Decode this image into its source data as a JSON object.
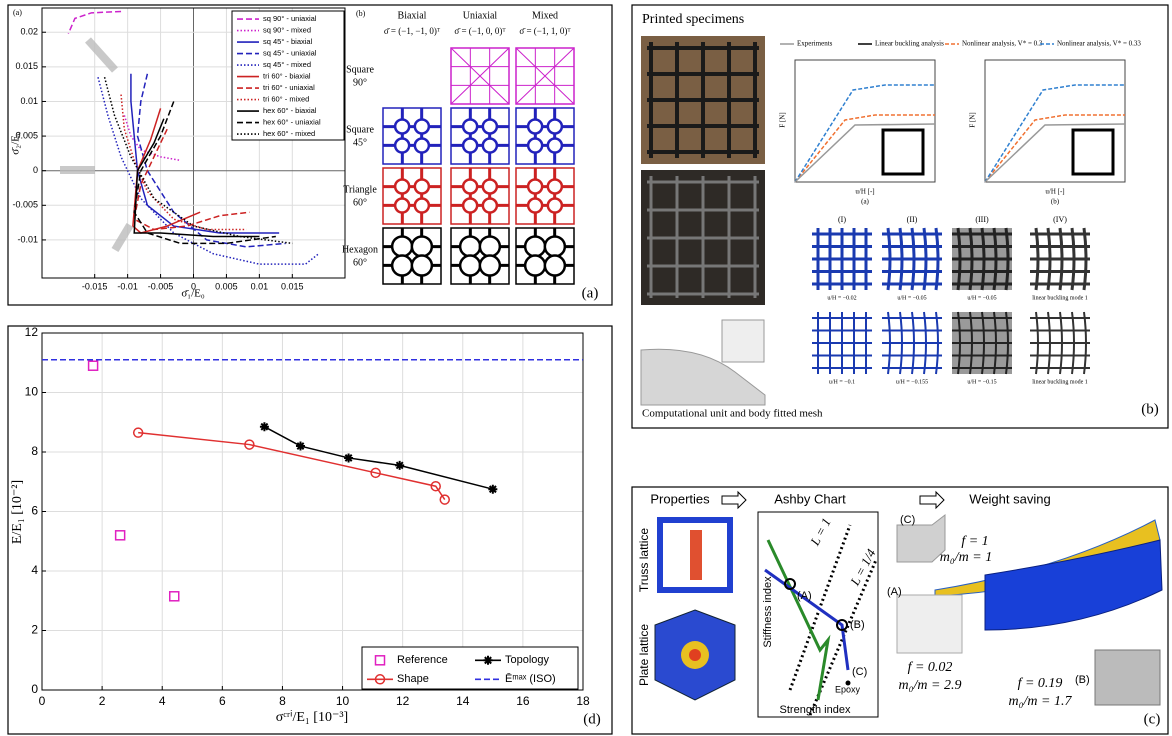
{
  "chart_data": [
    {
      "type": "line",
      "xlim": [
        -0.023,
        0.023
      ],
      "ylim": [
        -0.0155,
        0.0235
      ],
      "xticks": [
        -0.015,
        -0.01,
        -0.005,
        0,
        0.005,
        0.01,
        0.015
      ],
      "yticks": [
        -0.01,
        -0.005,
        0,
        0.005,
        0.01,
        0.015,
        0.02
      ],
      "grid": true,
      "x_label": "σ̄₁/E₀",
      "y_label": "σ̄₂/E₀",
      "legend": "upper right",
      "series": [
        {
          "name": "sq 90° - uniaxial",
          "color": "#cc22cc",
          "line": "dashed",
          "x": [
            -0.011,
            -0.0155,
            -0.018,
            -0.019
          ],
          "values": [
            0.023,
            0.0228,
            0.022,
            0.0198
          ]
        },
        {
          "name": "sq 90° - mixed",
          "color": "#cc22cc",
          "line": "dotted",
          "x": [
            -0.0105,
            -0.0095,
            -0.008,
            -0.005,
            -0.002
          ],
          "values": [
            0.008,
            0.005,
            0.003,
            0.002,
            0.0015
          ]
        },
        {
          "name": "sq 45° - biaxial",
          "color": "#2222bb",
          "line": "solid",
          "x": [
            -0.0095,
            -0.0095,
            -0.009,
            -0.0085,
            -0.007,
            -0.003,
            0.004,
            0.013
          ],
          "values": [
            0.014,
            0.01,
            0.005,
            0,
            -0.005,
            -0.008,
            -0.009,
            -0.009
          ]
        },
        {
          "name": "sq 45° - uniaxial",
          "color": "#2222bb",
          "line": "dashed",
          "x": [
            -0.007,
            -0.008,
            -0.0085,
            -0.007,
            -0.003,
            0.002,
            0.008,
            0.014
          ],
          "values": [
            0.014,
            0.01,
            0.005,
            0,
            -0.006,
            -0.01,
            -0.011,
            -0.0105
          ]
        },
        {
          "name": "sq 45° - mixed",
          "color": "#2222bb",
          "line": "dotted",
          "x": [
            -0.0145,
            -0.013,
            -0.011,
            -0.008,
            -0.003,
            0.003,
            0.01,
            0.017,
            0.019
          ],
          "values": [
            0.0135,
            0.008,
            0.002,
            -0.004,
            -0.009,
            -0.012,
            -0.0135,
            -0.0135,
            -0.012
          ]
        },
        {
          "name": "tri 60° - biaxial",
          "color": "#cc2222",
          "line": "solid",
          "x": [
            -0.005,
            -0.0065,
            -0.0085,
            -0.0092,
            -0.008,
            -0.004,
            0.001
          ],
          "values": [
            0.009,
            0.0045,
            0,
            -0.008,
            -0.009,
            -0.008,
            -0.006
          ]
        },
        {
          "name": "tri 60° - uniaxial",
          "color": "#cc2222",
          "line": "dashed",
          "x": [
            -0.004,
            -0.006,
            -0.008,
            -0.009,
            -0.006,
            -0.001,
            0.004,
            0.0085
          ],
          "values": [
            0.006,
            0.002,
            -0.002,
            -0.007,
            -0.0085,
            -0.008,
            -0.0065,
            -0.006
          ]
        },
        {
          "name": "tri 60° - mixed",
          "color": "#cc2222",
          "line": "dotted",
          "x": [
            -0.011,
            -0.0105,
            -0.009,
            -0.007,
            -0.003,
            0.002,
            0.008
          ],
          "values": [
            0.011,
            0.006,
            0.0015,
            -0.003,
            -0.007,
            -0.0085,
            -0.0085
          ]
        },
        {
          "name": "hex 60° - biaxial",
          "color": "#000000",
          "line": "solid",
          "x": [
            -0.0045,
            -0.006,
            -0.0085,
            -0.009,
            -0.005,
            0.003,
            0.01
          ],
          "values": [
            0.0075,
            0.004,
            0,
            -0.009,
            -0.009,
            -0.0095,
            -0.0095
          ]
        },
        {
          "name": "hex 60° - uniaxial",
          "color": "#000000",
          "line": "dashed",
          "x": [
            -0.003,
            -0.005,
            -0.008,
            -0.009,
            -0.007,
            -0.002,
            0.005,
            0.0125
          ],
          "values": [
            0.01,
            0.005,
            0,
            -0.006,
            -0.009,
            -0.0105,
            -0.0105,
            -0.0095
          ]
        },
        {
          "name": "hex 60° - mixed",
          "color": "#000000",
          "line": "dotted",
          "x": [
            -0.0135,
            -0.012,
            -0.0095,
            -0.006,
            0,
            0.007,
            0.015
          ],
          "values": [
            0.0135,
            0.008,
            0.002,
            -0.004,
            -0.008,
            -0.0095,
            -0.0105
          ]
        }
      ]
    },
    {
      "type": "line",
      "xlim": [
        0,
        18
      ],
      "ylim": [
        0,
        12
      ],
      "xticks": [
        0,
        2,
        4,
        6,
        8,
        10,
        12,
        14,
        16,
        18
      ],
      "yticks": [
        0,
        2,
        4,
        6,
        8,
        10,
        12
      ],
      "grid": true,
      "x_label": "σᶜʳⁱ/E₁ [10⁻³]",
      "y_label": "E/E₁ [10⁻²]",
      "legend": "lower right",
      "series": [
        {
          "name": "Reference",
          "color": "#e020c0",
          "line": "none",
          "marker": "square",
          "x": [
            1.7,
            2.6,
            4.4
          ],
          "values": [
            10.9,
            5.2,
            3.15
          ]
        },
        {
          "name": "Shape",
          "color": "#e03030",
          "line": "solid",
          "marker": "circle",
          "x": [
            3.2,
            6.9,
            11.1,
            13.1,
            13.4
          ],
          "values": [
            8.65,
            8.25,
            7.3,
            6.85,
            6.4
          ]
        },
        {
          "name": "Topology",
          "color": "#000000",
          "line": "solid",
          "marker": "star",
          "x": [
            7.4,
            8.6,
            10.2,
            11.9,
            15.0
          ],
          "values": [
            8.85,
            8.2,
            7.8,
            7.55,
            6.75
          ]
        }
      ],
      "reference_line": {
        "name": "Ēᵐᵃˣ (ISO)",
        "value": 11.1,
        "color": "#3030e0",
        "line": "dashed"
      }
    }
  ],
  "panel_a": {
    "label": "(a)",
    "corner_label": "(a)",
    "tiles": {
      "label": "(b)",
      "columns": [
        {
          "name": "Biaxial",
          "load": "σ̄ = (−1, −1, 0)ᵀ"
        },
        {
          "name": "Uniaxial",
          "load": "σ̄ = (−1, 0, 0)ᵀ"
        },
        {
          "name": "Mixed",
          "load": "σ̄ = (−1, 1, 0)ᵀ"
        }
      ],
      "rows": [
        {
          "name": "Square",
          "angle": "90°"
        },
        {
          "name": "Square",
          "angle": "45°"
        },
        {
          "name": "Triangle",
          "angle": "60°"
        },
        {
          "name": "Hexagon",
          "angle": "60°"
        }
      ]
    }
  },
  "panel_b": {
    "label": "(b)",
    "title": "Printed specimens",
    "caption": "Computational unit and body fitted mesh",
    "legend": [
      "Experiments",
      "Linear buckling analysis",
      "Nonlinear analysis, V* = 0.3",
      "Nonlinear analysis, V* = 0.33"
    ],
    "plots": [
      {
        "label": "(a)",
        "y_label": "F [N]",
        "x_label": "u/H [-]"
      },
      {
        "label": "(b)",
        "y_label": "F [N]",
        "x_label": "u/H [-]"
      }
    ],
    "stages": [
      "(I)",
      "(II)",
      "(III)",
      "(IV)"
    ],
    "captions": [
      [
        "u/H = −0.02",
        "u/H = −0.05",
        "u/H = −0.05",
        "linear buckling mode 1"
      ],
      [
        "u/H = −0.1",
        "u/H = −0.155",
        "u/H = −0.15",
        "linear buckling mode 1"
      ]
    ]
  },
  "panel_c": {
    "label": "(c)",
    "steps": [
      "Properties",
      "Ashby Chart",
      "Weight saving"
    ],
    "properties": [
      "Truss lattice",
      "Plate lattice"
    ],
    "ashby": {
      "y_label": "Stiffness index",
      "x_label": "Strength index",
      "lines": [
        "L = 1",
        "L = 1/4"
      ],
      "points": [
        "(A)",
        "(B)",
        "(C)"
      ],
      "epoxy": "Epoxy"
    },
    "savings": [
      {
        "label": "(C)",
        "f": "f = 1",
        "ratio": "m₀/m = 1"
      },
      {
        "label": "(A)",
        "f": "f = 0.02",
        "ratio": "m₀/m = 2.9"
      },
      {
        "label": "(B)",
        "f": "f = 0.19",
        "ratio": "m₀/m = 1.7"
      }
    ]
  },
  "panel_d": {
    "label": "(d)"
  }
}
